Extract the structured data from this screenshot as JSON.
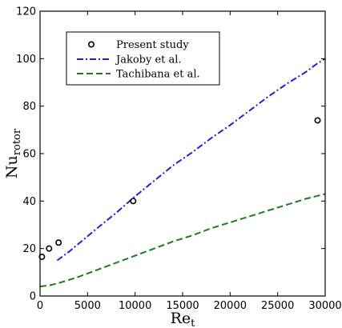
{
  "chart_data": {
    "type": "scatter",
    "xlabel": "Re",
    "xlabel_sub": "t",
    "ylabel": "Nu",
    "ylabel_sub": "rotor",
    "xlim": [
      0,
      30000
    ],
    "ylim": [
      0,
      120
    ],
    "xticks": [
      0,
      5000,
      10000,
      15000,
      20000,
      25000,
      30000
    ],
    "yticks": [
      0,
      20,
      40,
      60,
      80,
      100,
      120
    ],
    "legend_position": "upper-left",
    "series": [
      {
        "name": "Present study",
        "kind": "markers",
        "color": "#000000",
        "x": [
          200,
          950,
          1950,
          9800,
          29200
        ],
        "y": [
          16.5,
          20,
          22.5,
          40,
          74
        ]
      },
      {
        "name": "Jakoby et al.",
        "kind": "line",
        "style": "dashdot",
        "color": "#1f1fe0",
        "x": [
          1800,
          3000,
          4500,
          6000,
          8000,
          10000,
          12000,
          14000,
          16000,
          18000,
          20000,
          22000,
          24000,
          26000,
          28000,
          29000,
          30000
        ],
        "y": [
          15,
          18.5,
          23.5,
          28.5,
          35,
          42,
          48.5,
          55,
          60.5,
          66.5,
          72,
          78,
          84,
          89.5,
          94.5,
          97.5,
          100
        ]
      },
      {
        "name": "Tachibana et al.",
        "kind": "line",
        "style": "dashed",
        "color": "#1e7a1e",
        "x": [
          0,
          1000,
          2000,
          4000,
          6000,
          8000,
          10000,
          12000,
          14000,
          16000,
          18000,
          20000,
          22000,
          24000,
          26000,
          28000,
          30000
        ],
        "y": [
          4,
          4.5,
          5.5,
          8,
          11,
          14,
          17,
          20,
          23,
          25.5,
          28.5,
          31,
          33.5,
          36,
          38.5,
          41,
          43
        ]
      }
    ]
  }
}
